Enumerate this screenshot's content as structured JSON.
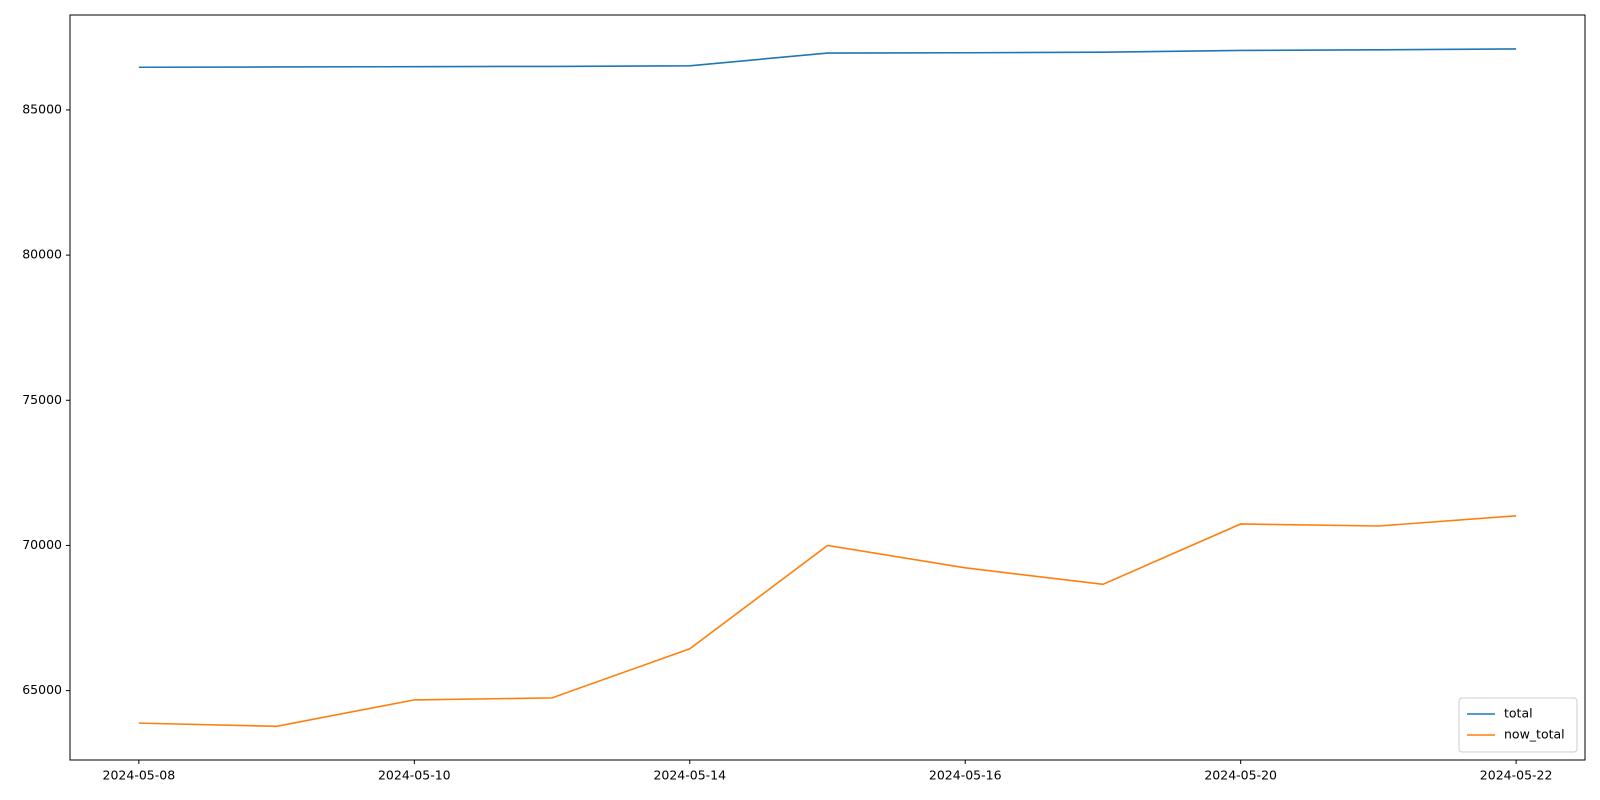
{
  "chart_data": {
    "type": "line",
    "categories": [
      "2024-05-08",
      null,
      "2024-05-10",
      null,
      "2024-05-14",
      null,
      "2024-05-16",
      null,
      "2024-05-20",
      null,
      "2024-05-22"
    ],
    "series": [
      {
        "name": "total",
        "color": "#1f77b4",
        "values": [
          86470,
          86480,
          86490,
          86500,
          86520,
          86960,
          86970,
          86990,
          87050,
          87070,
          87100
        ]
      },
      {
        "name": "now_total",
        "color": "#ff7f0e",
        "values": [
          63880,
          63770,
          64680,
          64750,
          66440,
          70000,
          69230,
          68660,
          70740,
          70670,
          71020
        ]
      }
    ],
    "ylim": [
      62610,
      88270
    ],
    "yticks": [
      65000,
      70000,
      75000,
      80000,
      85000
    ],
    "grid": false,
    "legend": "lower right"
  }
}
